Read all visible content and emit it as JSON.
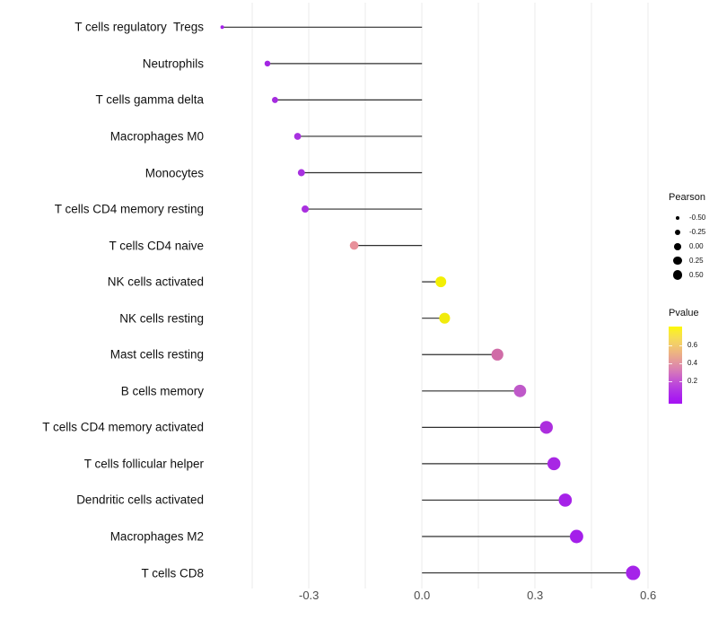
{
  "chart_data": {
    "type": "scatter",
    "variant": "lollipop",
    "title": "",
    "xlabel": "",
    "ylabel": "",
    "x_axis": {
      "tick_labels": [
        "-0.3",
        "0.0",
        "0.3",
        "0.6"
      ],
      "tick_values": [
        -0.3,
        0.0,
        0.3,
        0.6
      ],
      "minor_tick_values": [
        -0.45,
        -0.15,
        0.15,
        0.45
      ],
      "range": [
        -0.57,
        0.63
      ]
    },
    "grid": true,
    "legend_position": "right",
    "rows": [
      {
        "label": "T cells regulatory  Tregs",
        "pearson": -0.53,
        "dot_color": "#A521EA"
      },
      {
        "label": "Neutrophils",
        "pearson": -0.41,
        "dot_color": "#A326E3"
      },
      {
        "label": "T cells gamma delta",
        "pearson": -0.39,
        "dot_color": "#A52BDF"
      },
      {
        "label": "Macrophages M0",
        "pearson": -0.33,
        "dot_color": "#A831E0"
      },
      {
        "label": "Monocytes",
        "pearson": -0.32,
        "dot_color": "#A830E0"
      },
      {
        "label": "T cells CD4 memory resting",
        "pearson": -0.31,
        "dot_color": "#A92FDF"
      },
      {
        "label": "T cells CD4 naive",
        "pearson": -0.18,
        "dot_color": "#E8919B"
      },
      {
        "label": "NK cells activated",
        "pearson": 0.05,
        "dot_color": "#F3EF04"
      },
      {
        "label": "NK cells resting",
        "pearson": 0.06,
        "dot_color": "#F1EB0C"
      },
      {
        "label": "Mast cells resting",
        "pearson": 0.2,
        "dot_color": "#D06CA7"
      },
      {
        "label": "B cells memory",
        "pearson": 0.26,
        "dot_color": "#BF59C9"
      },
      {
        "label": "T cells CD4 memory activated",
        "pearson": 0.33,
        "dot_color": "#AC2EDE"
      },
      {
        "label": "T cells follicular helper",
        "pearson": 0.35,
        "dot_color": "#A827E4"
      },
      {
        "label": "Dendritic cells activated",
        "pearson": 0.38,
        "dot_color": "#A622E8"
      },
      {
        "label": "Macrophages M2",
        "pearson": 0.41,
        "dot_color": "#A41FEA"
      },
      {
        "label": "T cells CD8",
        "pearson": 0.56,
        "dot_color": "#A524E9"
      }
    ],
    "size_legend": {
      "title": "Pearson",
      "entries": [
        {
          "label": "-0.50",
          "value": -0.5
        },
        {
          "label": "-0.25",
          "value": -0.25
        },
        {
          "label": "0.00",
          "value": 0.0
        },
        {
          "label": "0.25",
          "value": 0.25
        },
        {
          "label": "0.50",
          "value": 0.5
        }
      ],
      "dot_color": "#000000"
    },
    "color_legend": {
      "title": "Pvalue",
      "tick_labels": [
        "0.6",
        "0.4",
        "0.2"
      ],
      "gradient_stops": [
        {
          "pos": 0.0,
          "color": "#FDF900"
        },
        {
          "pos": 0.06,
          "color": "#FAEC2E"
        },
        {
          "pos": 0.15,
          "color": "#F6DC55"
        },
        {
          "pos": 0.24,
          "color": "#F2CB6C"
        },
        {
          "pos": 0.35,
          "color": "#ECB184"
        },
        {
          "pos": 0.47,
          "color": "#E294A0"
        },
        {
          "pos": 0.58,
          "color": "#D679B9"
        },
        {
          "pos": 0.7,
          "color": "#C455D2"
        },
        {
          "pos": 0.82,
          "color": "#B236E4"
        },
        {
          "pos": 0.93,
          "color": "#A91CF0"
        },
        {
          "pos": 1.0,
          "color": "#A513F2"
        }
      ]
    },
    "style": {
      "background": "#FFFFFF",
      "grid_color": "#EBEBEB",
      "stem_color": "#2E2E2E",
      "axis_text_color": "#4D4D4D",
      "label_text_color": "#111111"
    }
  }
}
